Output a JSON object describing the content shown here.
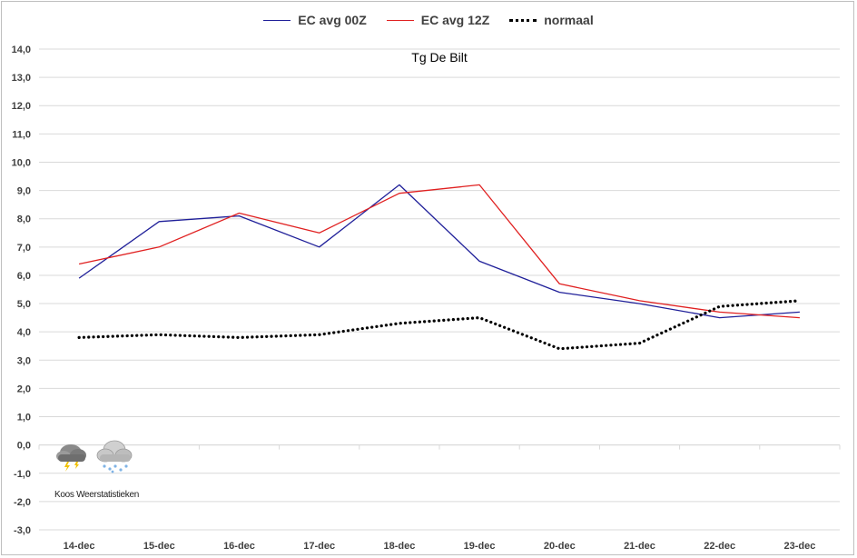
{
  "legend": [
    {
      "label": "EC avg 00Z",
      "color": "#1f1f99",
      "style": "solid"
    },
    {
      "label": "EC avg 12Z",
      "color": "#e02020",
      "style": "solid"
    },
    {
      "label": "normaal",
      "color": "#000000",
      "style": "dotted"
    }
  ],
  "watermark": {
    "text": "Koos Weerstatistieken",
    "icons": [
      "thunderstorm-cloud-icon",
      "snow-cloud-icon"
    ]
  },
  "chart_data": {
    "type": "line",
    "title": "Tg De Bilt",
    "xlabel": "",
    "ylabel": "",
    "categories": [
      "14-dec",
      "15-dec",
      "16-dec",
      "17-dec",
      "18-dec",
      "19-dec",
      "20-dec",
      "21-dec",
      "22-dec",
      "23-dec"
    ],
    "ylim": [
      -3.0,
      14.0
    ],
    "ytick_step": 1.0,
    "yticks": [
      "-3,0",
      "-2,0",
      "-1,0",
      "0,0",
      "1,0",
      "2,0",
      "3,0",
      "4,0",
      "5,0",
      "6,0",
      "7,0",
      "8,0",
      "9,0",
      "10,0",
      "11,0",
      "12,0",
      "13,0",
      "14,0"
    ],
    "grid": true,
    "legend_position": "top",
    "series": [
      {
        "name": "EC avg 00Z",
        "color": "#1f1f99",
        "values": [
          5.9,
          7.9,
          8.1,
          7.0,
          9.2,
          6.5,
          5.4,
          5.0,
          4.5,
          4.7
        ]
      },
      {
        "name": "EC avg 12Z",
        "color": "#e02020",
        "values": [
          6.4,
          7.0,
          8.2,
          7.5,
          8.9,
          9.2,
          5.7,
          5.1,
          4.7,
          4.5
        ]
      },
      {
        "name": "normaal",
        "color": "#000000",
        "style": "dotted",
        "values": [
          3.8,
          3.9,
          3.8,
          3.9,
          4.3,
          4.5,
          3.4,
          3.6,
          4.9,
          5.1
        ]
      }
    ]
  }
}
